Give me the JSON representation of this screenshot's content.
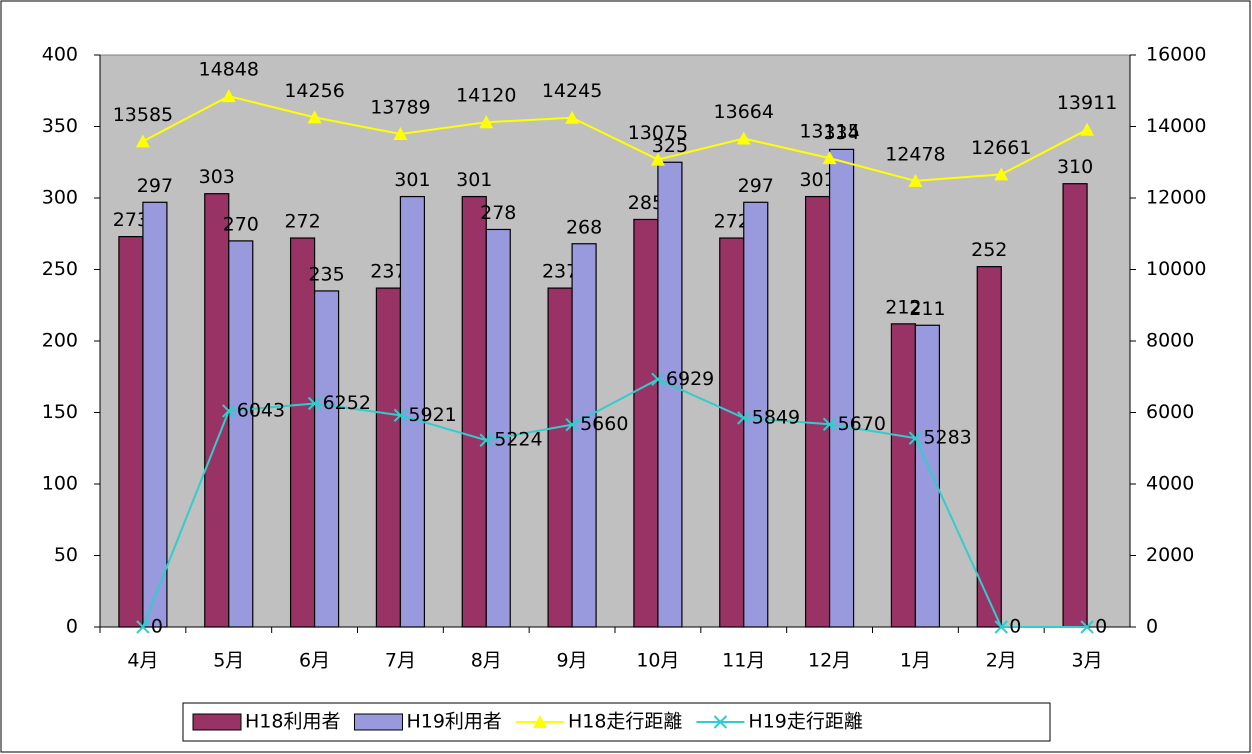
{
  "chart_data": {
    "type": "bar",
    "categories": [
      "4月",
      "5月",
      "6月",
      "7月",
      "8月",
      "9月",
      "10月",
      "11月",
      "12月",
      "1月",
      "2月",
      "3月"
    ],
    "series": [
      {
        "name": "H18利用者",
        "type": "bar",
        "color": "#993366",
        "values": [
          273,
          303,
          272,
          237,
          301,
          237,
          285,
          272,
          301,
          212,
          252,
          310
        ]
      },
      {
        "name": "H19利用者",
        "type": "bar",
        "color": "#9999dd",
        "values": [
          297,
          270,
          235,
          301,
          278,
          268,
          325,
          297,
          334,
          211,
          null,
          null
        ]
      },
      {
        "name": "H18走行距離",
        "type": "line",
        "axis": "y2",
        "marker": "triangle",
        "color": "#ffff00",
        "values": [
          13585,
          14848,
          14256,
          13789,
          14120,
          14245,
          13075,
          13664,
          13115,
          12478,
          12661,
          13911
        ]
      },
      {
        "name": "H19走行距離",
        "type": "line",
        "axis": "y2",
        "marker": "x",
        "color": "#33cccc",
        "values": [
          0,
          6043,
          6252,
          5921,
          5224,
          5660,
          6929,
          5849,
          5670,
          5283,
          0,
          0
        ]
      }
    ],
    "ylim": [
      0,
      400
    ],
    "yticks": [
      0,
      50,
      100,
      150,
      200,
      250,
      300,
      350,
      400
    ],
    "y2lim": [
      0,
      16000
    ],
    "y2ticks": [
      0,
      2000,
      4000,
      6000,
      8000,
      10000,
      12000,
      14000,
      16000
    ],
    "legend": "bottom"
  }
}
